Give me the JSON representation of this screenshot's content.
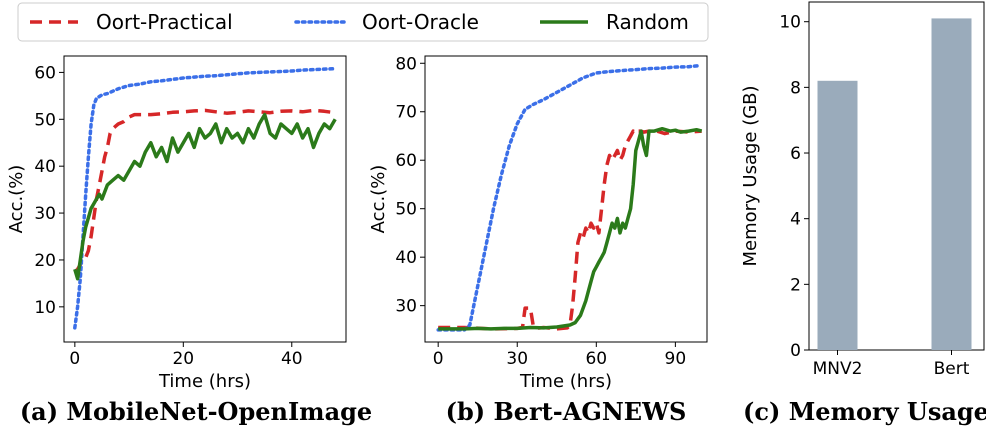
{
  "legend": {
    "entries": [
      {
        "label": "Oort-Practical",
        "color": "#d62728",
        "dash": "dashed"
      },
      {
        "label": "Oort-Oracle",
        "color": "#3b6fe8",
        "dash": "dotted"
      },
      {
        "label": "Random",
        "color": "#2b7a1a",
        "dash": "solid"
      }
    ]
  },
  "chart_data": [
    {
      "type": "line",
      "caption": "(a) MobileNet-OpenImage",
      "xlabel": "Time (hrs)",
      "ylabel": "Acc.(%)",
      "xlim": [
        -2,
        50
      ],
      "ylim": [
        2.5,
        63.5
      ],
      "xticks": [
        0,
        20,
        40
      ],
      "yticks": [
        10,
        20,
        30,
        40,
        50,
        60
      ],
      "series": [
        {
          "name": "Oort-Practical",
          "color": "#d62728",
          "x": [
            0,
            0.5,
            1,
            1.5,
            2,
            2.5,
            3,
            3.5,
            4,
            4.5,
            5,
            5.5,
            6,
            6.5,
            7,
            7.5,
            8,
            9,
            10,
            11,
            12,
            14,
            16,
            18,
            20,
            22,
            24,
            26,
            28,
            30,
            32,
            34,
            36,
            38,
            40,
            42,
            44,
            46,
            48
          ],
          "y": [
            17.5,
            18,
            19,
            20,
            20.5,
            22,
            25,
            29,
            33,
            36,
            39,
            42,
            44,
            47,
            48,
            48.5,
            49,
            49.5,
            50.5,
            51,
            51,
            51,
            51.2,
            51.5,
            51.6,
            51.8,
            51.9,
            51.6,
            51.3,
            51.5,
            51.8,
            51.6,
            51.4,
            51.7,
            51.8,
            51.6,
            51.9,
            51.7,
            51.4
          ]
        },
        {
          "name": "Oort-Oracle",
          "color": "#3b6fe8",
          "x": [
            0,
            0.5,
            1,
            1.5,
            2,
            2.5,
            3,
            3.5,
            4,
            5,
            6,
            7,
            8,
            10,
            12,
            14,
            16,
            18,
            20,
            22,
            24,
            26,
            28,
            30,
            32,
            34,
            36,
            38,
            40,
            42,
            44,
            46,
            48
          ],
          "y": [
            5.5,
            10,
            16,
            25,
            34,
            42,
            49,
            53,
            54.5,
            55.2,
            55.5,
            56,
            56.5,
            57.2,
            57.5,
            58,
            58.2,
            58.5,
            58.8,
            59,
            59.2,
            59.3,
            59.5,
            59.7,
            59.9,
            60,
            60.1,
            60.2,
            60.3,
            60.5,
            60.6,
            60.7,
            60.8
          ]
        },
        {
          "name": "Random",
          "color": "#2b7a1a",
          "x": [
            0,
            0.5,
            1,
            1.5,
            2,
            2.5,
            3,
            3.5,
            4,
            4.5,
            5,
            6,
            7,
            8,
            9,
            10,
            11,
            12,
            13,
            14,
            15,
            16,
            17,
            18,
            19,
            20,
            21,
            22,
            23,
            24,
            25,
            26,
            27,
            28,
            29,
            30,
            31,
            32,
            33,
            34,
            35,
            36,
            37,
            38,
            39,
            40,
            41,
            42,
            43,
            44,
            45,
            46,
            47,
            48
          ],
          "y": [
            18,
            16,
            20,
            24,
            27,
            29,
            31,
            32,
            33,
            34,
            33,
            36,
            37,
            38,
            37,
            39,
            41,
            40,
            43,
            45,
            42,
            44,
            41,
            46,
            43,
            45,
            47,
            44,
            48,
            46,
            47,
            49,
            45,
            48,
            46,
            47,
            45,
            48,
            46,
            49,
            51,
            47,
            46,
            49,
            48,
            47,
            49,
            46,
            48,
            44,
            47,
            49,
            48,
            50
          ]
        }
      ]
    },
    {
      "type": "line",
      "caption": "(b) Bert-AGNEWS",
      "xlabel": "Time (hrs)",
      "ylabel": "Acc.(%)",
      "xlim": [
        -5,
        102
      ],
      "ylim": [
        22.5,
        81.5
      ],
      "xticks": [
        0,
        30,
        60,
        90
      ],
      "yticks": [
        30,
        40,
        50,
        60,
        70,
        80
      ],
      "series": [
        {
          "name": "Oort-Practical",
          "color": "#d62728",
          "x": [
            0,
            5,
            10,
            20,
            30,
            32,
            33,
            35,
            36,
            37,
            40,
            45,
            49,
            50,
            51,
            52,
            53,
            54,
            55,
            56,
            57,
            58,
            59,
            60,
            61,
            62,
            63,
            64,
            65,
            66,
            67,
            68,
            69,
            70,
            71,
            72,
            73,
            74,
            75,
            76,
            77,
            78,
            80,
            83,
            86,
            90,
            95,
            100
          ],
          "y": [
            25.5,
            25.5,
            25.5,
            25.2,
            25.3,
            25.5,
            29.5,
            29.5,
            26,
            25.3,
            25.5,
            25.2,
            25.4,
            26,
            30,
            36,
            43,
            45,
            44,
            46,
            45,
            47,
            46,
            47,
            45,
            50,
            55,
            59,
            61,
            60,
            61,
            62,
            60,
            61,
            63,
            64,
            65,
            66,
            65.5,
            66,
            66,
            65.8,
            66,
            66,
            65.5,
            66,
            65.8,
            66
          ]
        },
        {
          "name": "Oort-Oracle",
          "color": "#3b6fe8",
          "x": [
            0,
            5,
            10,
            12,
            15,
            18,
            21,
            24,
            27,
            30,
            33,
            36,
            40,
            45,
            50,
            55,
            60,
            65,
            70,
            75,
            80,
            85,
            90,
            95,
            99
          ],
          "y": [
            25,
            25,
            25,
            26,
            34,
            42,
            50,
            57,
            63,
            67.5,
            70.5,
            71.5,
            72.5,
            74,
            75.5,
            77,
            78,
            78.3,
            78.5,
            78.7,
            78.9,
            79,
            79.2,
            79.3,
            79.5
          ]
        },
        {
          "name": "Random",
          "color": "#2b7a1a",
          "x": [
            0,
            5,
            10,
            15,
            20,
            25,
            30,
            35,
            40,
            45,
            50,
            52,
            54,
            56,
            57,
            58,
            59,
            60,
            61,
            62,
            63,
            64,
            65,
            66,
            67,
            68,
            69,
            70,
            71,
            72,
            73,
            74,
            75,
            76,
            77,
            78,
            79,
            80,
            82,
            85,
            88,
            90,
            92,
            95,
            98,
            100
          ],
          "y": [
            25.2,
            25.2,
            25.2,
            25.3,
            25.2,
            25.3,
            25.3,
            25.5,
            25.4,
            25.6,
            26,
            26.5,
            28,
            31,
            33,
            35,
            37,
            38,
            39,
            40,
            41,
            43,
            45,
            47,
            46,
            48,
            45,
            47,
            46,
            48,
            50,
            55,
            62,
            64,
            66,
            63,
            61,
            66,
            66,
            66.5,
            66,
            66.2,
            65.8,
            66,
            66.3,
            66
          ]
        }
      ]
    },
    {
      "type": "bar",
      "caption": "(c) Memory Usage",
      "categories": [
        "MNV2",
        "Bert"
      ],
      "values": [
        8.2,
        10.1
      ],
      "ylabel": "Memory Usage (GB)",
      "ylim": [
        0,
        10.6
      ],
      "yticks": [
        0,
        2,
        4,
        6,
        8,
        10
      ],
      "bar_color": "#9aabbb"
    }
  ]
}
